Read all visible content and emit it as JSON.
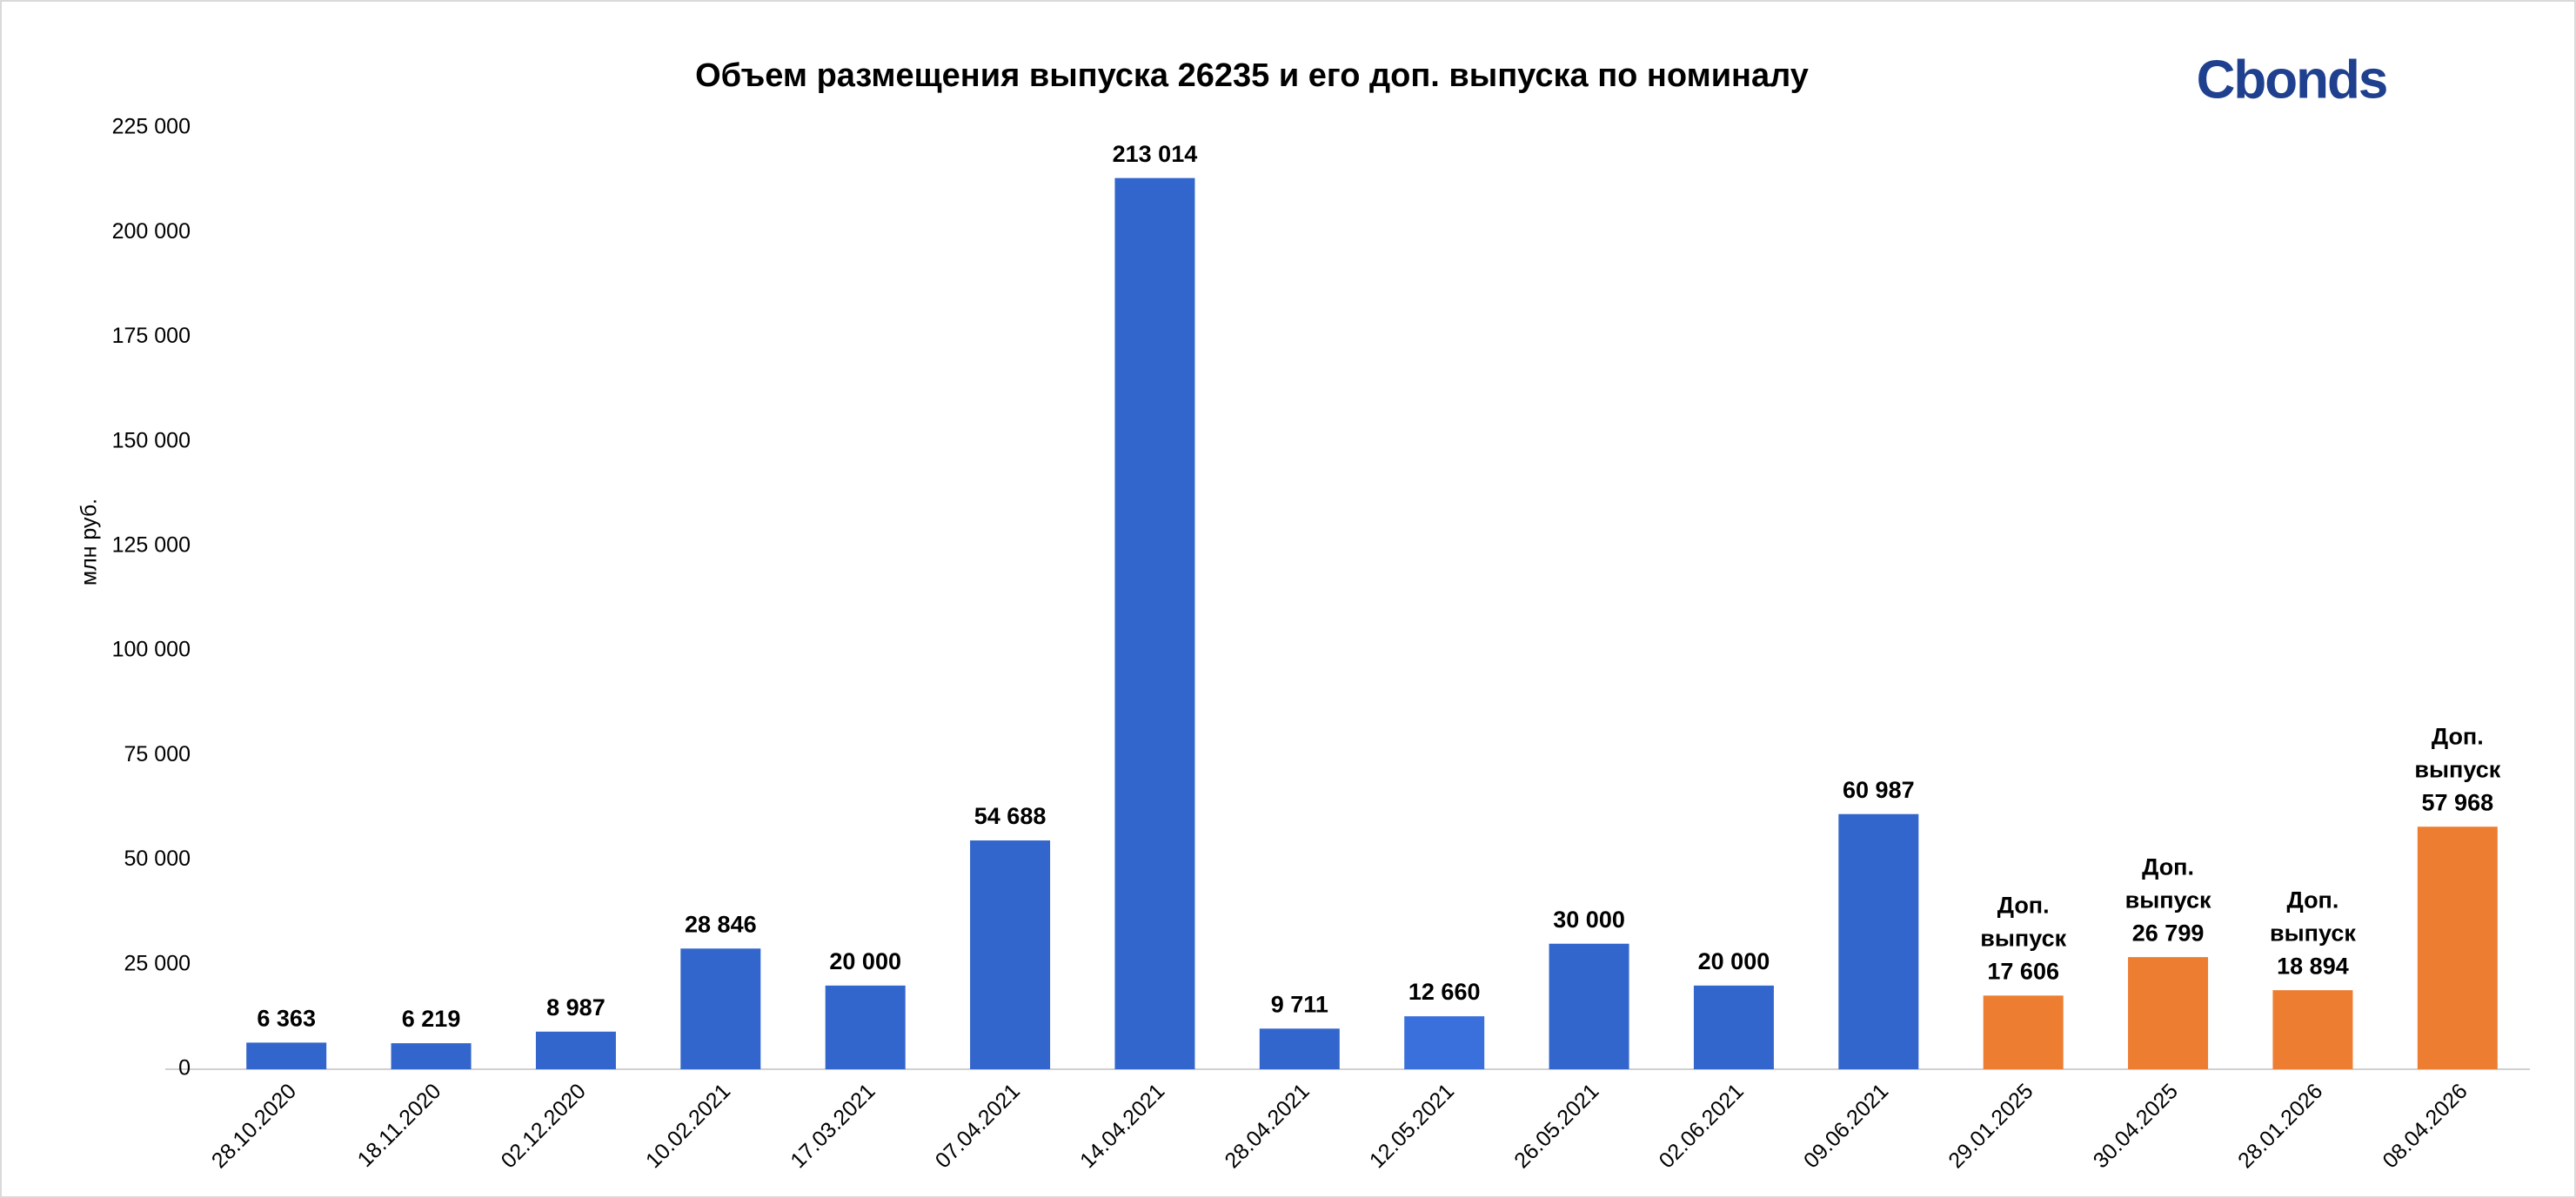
{
  "chart_data": {
    "type": "bar",
    "title": "Объем размещения выпуска 26235 и его доп. выпуска по номиналу",
    "logo": "Cbonds",
    "y_label": "млн руб.",
    "categories": [
      "28.10.2020",
      "18.11.2020",
      "02.12.2020",
      "10.02.2021",
      "17.03.2021",
      "07.04.2021",
      "14.04.2021",
      "28.04.2021",
      "12.05.2021",
      "26.05.2021",
      "02.06.2021",
      "09.06.2021",
      "29.01.2025",
      "30.04.2025",
      "28.01.2026",
      "08.04.2026"
    ],
    "values": [
      6363,
      6219,
      8987,
      28846,
      20000,
      54688,
      213014,
      9711,
      12660,
      30000,
      20000,
      60987,
      17606,
      26799,
      18894,
      57968
    ],
    "value_labels": [
      "6 363",
      "6 219",
      "8 987",
      "28 846",
      "20 000",
      "54 688",
      "213 014",
      "9 711",
      "12 660",
      "30 000",
      "20 000",
      "60 987",
      "17 606",
      "26 799",
      "18 894",
      "57 968"
    ],
    "annotation_lines": [
      null,
      null,
      null,
      null,
      null,
      null,
      null,
      null,
      null,
      null,
      null,
      null,
      [
        "Доп.",
        "выпуск"
      ],
      [
        "Доп.",
        "выпуск"
      ],
      [
        "Доп.",
        "выпуск"
      ],
      [
        "Доп.",
        "выпуск"
      ]
    ],
    "colors": [
      "#3366cc",
      "#3366cc",
      "#3366cc",
      "#3366cc",
      "#3366cc",
      "#3366cc",
      "#3366cc",
      "#3366cc",
      "#3a70dc",
      "#3366cc",
      "#3366cc",
      "#3366cc",
      "#ed7d31",
      "#ed7d31",
      "#ed7d31",
      "#ed7d31"
    ],
    "ylim": [
      0,
      225000
    ],
    "yticks": [
      0,
      {
        "value": 25000,
        "label": "25 000"
      },
      {
        "value": 50000,
        "label": "50 000"
      },
      {
        "value": 75000,
        "label": "75 000"
      },
      {
        "value": 100000,
        "label": "100 000"
      },
      {
        "value": 125000,
        "label": "125 000"
      },
      {
        "value": 150000,
        "label": "150 000"
      },
      {
        "value": 175000,
        "label": "175 000"
      },
      {
        "value": 200000,
        "label": "200 000"
      },
      {
        "value": 225000,
        "label": "225 000"
      }
    ],
    "grid": false
  }
}
